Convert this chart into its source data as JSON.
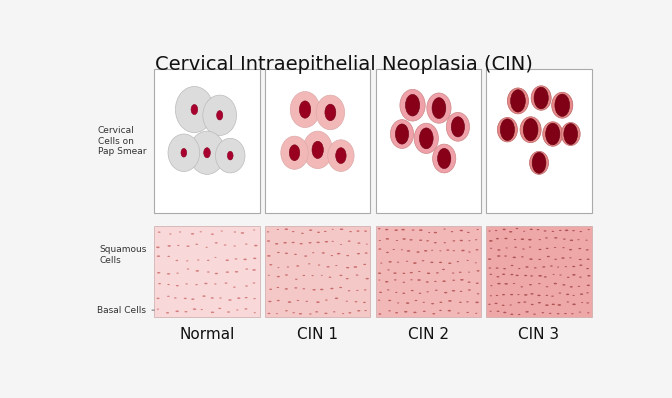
{
  "title": "Cervical Intraepithelial Neoplasia (CIN)",
  "title_fontsize": 14,
  "background_color": "#f5f5f5",
  "categories": [
    "Normal",
    "CIN 1",
    "CIN 2",
    "CIN 3"
  ],
  "label_cervical": "Cervical\nCells on\nPap Smear",
  "label_squamous": "Squamous\nCells",
  "label_basal": "Basal Cells",
  "arrow_color": "#111111",
  "label_color": "#333333",
  "category_fontsize": 11,
  "label_fontsize": 6.5,
  "fig_width": 6.72,
  "fig_height": 3.98,
  "dpi": 100,
  "normal_cells": [
    [
      0.38,
      0.72,
      0.36,
      0.32,
      0.07
    ],
    [
      0.62,
      0.68,
      0.32,
      0.28,
      0.065
    ],
    [
      0.5,
      0.42,
      0.34,
      0.3,
      0.07
    ],
    [
      0.28,
      0.42,
      0.3,
      0.26,
      0.06
    ],
    [
      0.72,
      0.4,
      0.28,
      0.24,
      0.06
    ]
  ],
  "cin1_cells": [
    [
      0.38,
      0.72,
      0.28,
      0.25,
      0.12
    ],
    [
      0.62,
      0.7,
      0.27,
      0.24,
      0.115
    ],
    [
      0.5,
      0.44,
      0.28,
      0.26,
      0.12
    ],
    [
      0.28,
      0.42,
      0.26,
      0.23,
      0.11
    ],
    [
      0.72,
      0.4,
      0.25,
      0.22,
      0.11
    ]
  ],
  "cin2_cells": [
    [
      0.35,
      0.75,
      0.24,
      0.22,
      0.15
    ],
    [
      0.6,
      0.73,
      0.23,
      0.21,
      0.145
    ],
    [
      0.78,
      0.6,
      0.22,
      0.2,
      0.14
    ],
    [
      0.48,
      0.52,
      0.23,
      0.21,
      0.145
    ],
    [
      0.25,
      0.55,
      0.22,
      0.2,
      0.14
    ],
    [
      0.65,
      0.38,
      0.22,
      0.2,
      0.14
    ]
  ],
  "cin3_cells": [
    [
      0.3,
      0.78,
      0.2,
      0.18,
      0.155
    ],
    [
      0.52,
      0.8,
      0.19,
      0.17,
      0.15
    ],
    [
      0.72,
      0.75,
      0.2,
      0.18,
      0.155
    ],
    [
      0.2,
      0.58,
      0.19,
      0.17,
      0.15
    ],
    [
      0.42,
      0.58,
      0.2,
      0.18,
      0.155
    ],
    [
      0.63,
      0.55,
      0.19,
      0.17,
      0.15
    ],
    [
      0.8,
      0.55,
      0.18,
      0.16,
      0.145
    ],
    [
      0.5,
      0.35,
      0.18,
      0.16,
      0.145
    ]
  ]
}
